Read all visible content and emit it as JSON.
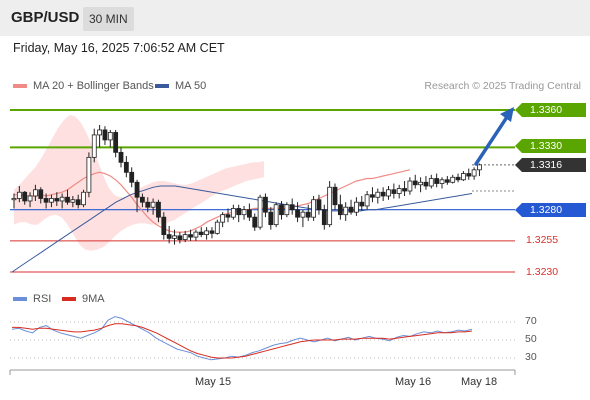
{
  "header": {
    "pair": "GBP/USD",
    "timeframe": "30 MIN"
  },
  "datetime": "Friday, May 16, 2025 7:06:52 AM CET",
  "legend": {
    "ma20_label": "MA 20 + Bollinger Bands",
    "ma50_label": "MA 50",
    "rsi_label": "RSI",
    "rsi_ma_label": "9MA",
    "research": "Research © 2025 Trading Central"
  },
  "levels": {
    "r2": "1.3360",
    "r1": "1.3330",
    "last": "1.3316",
    "pivot": "1.3280",
    "s1": "1.3255",
    "s2": "1.3230"
  },
  "rsi_ticks": [
    "70",
    "50",
    "30"
  ],
  "x_labels": [
    "May 15",
    "May 16",
    "May 18"
  ],
  "colors": {
    "up_candle": "#ffffff",
    "down_candle": "#222222",
    "resistance": "#5aa500",
    "pivot": "#2459d3",
    "support": "#d8322d",
    "ma20": "#f08a84",
    "ma50": "#3a5a9c",
    "bollinger_fill": "#fde0df",
    "rsi": "#6a8fd8",
    "rsi_ma": "#d82c20",
    "last_price": "#333333"
  },
  "chart_data": {
    "type": "candlestick",
    "y_range": [
      1.3225,
      1.3375
    ],
    "ohlc": [
      [
        1.3288,
        1.3293,
        1.3281,
        1.3289
      ],
      [
        1.3289,
        1.3299,
        1.3286,
        1.3294
      ],
      [
        1.3294,
        1.3295,
        1.3284,
        1.3287
      ],
      [
        1.3287,
        1.3294,
        1.3282,
        1.3291
      ],
      [
        1.3291,
        1.33,
        1.3287,
        1.3296
      ],
      [
        1.3296,
        1.3298,
        1.3285,
        1.3289
      ],
      [
        1.3289,
        1.3293,
        1.3281,
        1.3286
      ],
      [
        1.3286,
        1.3292,
        1.3282,
        1.3289
      ],
      [
        1.3289,
        1.3294,
        1.3283,
        1.3287
      ],
      [
        1.3287,
        1.3293,
        1.3281,
        1.329
      ],
      [
        1.329,
        1.3296,
        1.3284,
        1.3286
      ],
      [
        1.3286,
        1.3291,
        1.3282,
        1.3288
      ],
      [
        1.3288,
        1.3292,
        1.3281,
        1.3284
      ],
      [
        1.3284,
        1.3296,
        1.3282,
        1.3294
      ],
      [
        1.3294,
        1.3326,
        1.329,
        1.3322
      ],
      [
        1.3322,
        1.3345,
        1.3318,
        1.334
      ],
      [
        1.334,
        1.3348,
        1.333,
        1.3344
      ],
      [
        1.3344,
        1.3347,
        1.3332,
        1.3336
      ],
      [
        1.3336,
        1.3344,
        1.333,
        1.3342
      ],
      [
        1.3342,
        1.3344,
        1.3322,
        1.3326
      ],
      [
        1.3326,
        1.333,
        1.3314,
        1.3318
      ],
      [
        1.3318,
        1.3323,
        1.3306,
        1.331
      ],
      [
        1.331,
        1.3314,
        1.3298,
        1.3302
      ],
      [
        1.3302,
        1.3304,
        1.3278,
        1.329
      ],
      [
        1.329,
        1.3293,
        1.3282,
        1.3286
      ],
      [
        1.3286,
        1.329,
        1.3278,
        1.3282
      ],
      [
        1.3282,
        1.3289,
        1.3276,
        1.3286
      ],
      [
        1.3286,
        1.3288,
        1.327,
        1.3274
      ],
      [
        1.3274,
        1.3278,
        1.3256,
        1.326
      ],
      [
        1.326,
        1.3267,
        1.3253,
        1.3257
      ],
      [
        1.3257,
        1.3264,
        1.3252,
        1.3259
      ],
      [
        1.3259,
        1.3262,
        1.3253,
        1.3256
      ],
      [
        1.3256,
        1.3263,
        1.3254,
        1.326
      ],
      [
        1.326,
        1.3264,
        1.3255,
        1.3258
      ],
      [
        1.3258,
        1.3264,
        1.3255,
        1.3262
      ],
      [
        1.3262,
        1.3266,
        1.3258,
        1.326
      ],
      [
        1.326,
        1.3266,
        1.3256,
        1.3263
      ],
      [
        1.3263,
        1.3266,
        1.3257,
        1.3261
      ],
      [
        1.3261,
        1.3272,
        1.326,
        1.327
      ],
      [
        1.327,
        1.3278,
        1.3266,
        1.3276
      ],
      [
        1.3276,
        1.3281,
        1.327,
        1.3274
      ],
      [
        1.3274,
        1.3284,
        1.3272,
        1.3281
      ],
      [
        1.3281,
        1.3284,
        1.327,
        1.3276
      ],
      [
        1.3276,
        1.3283,
        1.3272,
        1.328
      ],
      [
        1.328,
        1.3285,
        1.3271,
        1.3274
      ],
      [
        1.3274,
        1.3277,
        1.3263,
        1.3266
      ],
      [
        1.3266,
        1.3292,
        1.3264,
        1.329
      ],
      [
        1.329,
        1.3293,
        1.3274,
        1.3278
      ],
      [
        1.3278,
        1.3282,
        1.3264,
        1.3268
      ],
      [
        1.3268,
        1.3286,
        1.3266,
        1.3284
      ],
      [
        1.3284,
        1.3287,
        1.3272,
        1.3276
      ],
      [
        1.3276,
        1.3286,
        1.3274,
        1.3284
      ],
      [
        1.3284,
        1.3289,
        1.3276,
        1.328
      ],
      [
        1.328,
        1.3286,
        1.327,
        1.3274
      ],
      [
        1.3274,
        1.328,
        1.3266,
        1.3278
      ],
      [
        1.3278,
        1.3284,
        1.3271,
        1.3274
      ],
      [
        1.3274,
        1.3291,
        1.3271,
        1.3288
      ],
      [
        1.3288,
        1.3292,
        1.3276,
        1.328
      ],
      [
        1.328,
        1.3284,
        1.3264,
        1.3268
      ],
      [
        1.3268,
        1.3303,
        1.3266,
        1.3298
      ],
      [
        1.3298,
        1.3301,
        1.328,
        1.3284
      ],
      [
        1.3284,
        1.3292,
        1.3272,
        1.3276
      ],
      [
        1.3276,
        1.3286,
        1.3271,
        1.3282
      ],
      [
        1.3282,
        1.3288,
        1.3276,
        1.3278
      ],
      [
        1.3278,
        1.329,
        1.3275,
        1.3286
      ],
      [
        1.3286,
        1.3291,
        1.3279,
        1.3283
      ],
      [
        1.3283,
        1.3295,
        1.328,
        1.3292
      ],
      [
        1.3292,
        1.3298,
        1.3286,
        1.329
      ],
      [
        1.329,
        1.3297,
        1.3285,
        1.3294
      ],
      [
        1.3294,
        1.3298,
        1.3287,
        1.3291
      ],
      [
        1.3291,
        1.3299,
        1.3288,
        1.3296
      ],
      [
        1.3296,
        1.3301,
        1.3289,
        1.3293
      ],
      [
        1.3293,
        1.33,
        1.3289,
        1.3297
      ],
      [
        1.3297,
        1.3303,
        1.3291,
        1.3295
      ],
      [
        1.3295,
        1.3306,
        1.3292,
        1.3303
      ],
      [
        1.3303,
        1.3308,
        1.3297,
        1.33
      ],
      [
        1.33,
        1.3306,
        1.3294,
        1.3302
      ],
      [
        1.3302,
        1.3307,
        1.3296,
        1.3299
      ],
      [
        1.3299,
        1.3308,
        1.3297,
        1.3305
      ],
      [
        1.3305,
        1.3309,
        1.3298,
        1.3301
      ],
      [
        1.3301,
        1.3306,
        1.3297,
        1.3304
      ],
      [
        1.3304,
        1.3307,
        1.33,
        1.3302
      ],
      [
        1.3302,
        1.3308,
        1.3301,
        1.3306
      ],
      [
        1.3306,
        1.3309,
        1.3302,
        1.3304
      ],
      [
        1.3304,
        1.3311,
        1.3303,
        1.3309
      ],
      [
        1.3309,
        1.3313,
        1.3304,
        1.3307
      ],
      [
        1.3307,
        1.3314,
        1.3304,
        1.3312
      ],
      [
        1.3312,
        1.3317,
        1.3307,
        1.3316
      ]
    ],
    "ma20": [
      1.3292,
      1.3292,
      1.3291,
      1.3291,
      1.3291,
      1.3292,
      1.3291,
      1.3292,
      1.3293,
      1.3294,
      1.3296,
      1.3299,
      1.3302,
      1.3305,
      1.3307,
      1.3309,
      1.331,
      1.3309,
      1.3307,
      1.3304,
      1.33,
      1.3295,
      1.329,
      1.3284,
      1.3279,
      1.3274,
      1.327,
      1.3267,
      1.3265,
      1.3263,
      1.3262,
      1.3262,
      1.3262,
      1.3263,
      1.3265,
      1.3267,
      1.327,
      1.3272,
      1.3274,
      1.3276,
      1.3277,
      1.3278,
      1.3279,
      1.328,
      1.328,
      1.3281,
      1.3281,
      1.3281,
      1.3281,
      1.3281,
      1.3281,
      1.3281,
      1.3282,
      1.3283,
      1.3284,
      1.3285,
      1.3287,
      1.3289,
      1.3291,
      1.3293,
      1.3295,
      1.3297,
      1.3299,
      1.3301,
      1.3303,
      1.3304,
      1.3305,
      1.3305,
      1.3306,
      1.3307,
      1.3308,
      1.3309,
      1.331,
      1.3311,
      1.3312
    ],
    "ma50": [
      1.323,
      1.3234,
      1.3238,
      1.3242,
      1.3246,
      1.325,
      1.3254,
      1.3258,
      1.3262,
      1.3266,
      1.327,
      1.3274,
      1.3278,
      1.3282,
      1.3286,
      1.3289,
      1.3292,
      1.3294,
      1.3296,
      1.3298,
      1.3299,
      1.3299,
      1.3299,
      1.3298,
      1.3297,
      1.3296,
      1.3295,
      1.3294,
      1.3293,
      1.3292,
      1.3291,
      1.329,
      1.3289,
      1.3288,
      1.3287,
      1.3286,
      1.3285,
      1.3284,
      1.3283,
      1.3282,
      1.3281,
      1.328,
      1.328,
      1.3279,
      1.3279,
      1.3279,
      1.3279,
      1.3279,
      1.328,
      1.328,
      1.3281,
      1.3282,
      1.3283,
      1.3284,
      1.3285,
      1.3286,
      1.3287,
      1.3288,
      1.3289,
      1.329,
      1.3291,
      1.3292,
      1.3293
    ],
    "bb_upper": [
      1.3296,
      1.33,
      1.3305,
      1.331,
      1.3315,
      1.3322,
      1.333,
      1.3338,
      1.3346,
      1.3352,
      1.3356,
      1.3355,
      1.335,
      1.3342,
      1.3332,
      1.332,
      1.3308,
      1.3298,
      1.3292,
      1.329,
      1.329,
      1.3292,
      1.3295,
      1.3298,
      1.33,
      1.3302,
      1.3303,
      1.3303,
      1.3302,
      1.3301,
      1.33,
      1.33,
      1.3301,
      1.3303,
      1.3305,
      1.3307,
      1.3309,
      1.3311,
      1.3313,
      1.3314,
      1.3315,
      1.3316,
      1.3317,
      1.3318,
      1.3318,
      1.3319
    ],
    "bb_lower": [
      1.3268,
      1.327,
      1.327,
      1.3268,
      1.3268,
      1.3272,
      1.3275,
      1.3276,
      1.3274,
      1.3268,
      1.326,
      1.3252,
      1.3248,
      1.3247,
      1.3248,
      1.325,
      1.3254,
      1.3259,
      1.3263,
      1.3266,
      1.3268,
      1.3269,
      1.3269,
      1.3268,
      1.3268,
      1.3269,
      1.327,
      1.3272,
      1.3275,
      1.3278,
      1.3281,
      1.3284,
      1.3287,
      1.329,
      1.3293,
      1.3295,
      1.3297,
      1.3299,
      1.3301,
      1.3303,
      1.3304,
      1.3305,
      1.3306
    ],
    "rsi": [
      62,
      63,
      60,
      58,
      64,
      66,
      61,
      58,
      56,
      54,
      52,
      55,
      58,
      62,
      72,
      76,
      74,
      70,
      66,
      62,
      58,
      52,
      48,
      44,
      40,
      38,
      36,
      32,
      30,
      28,
      29,
      30,
      32,
      31,
      33,
      36,
      38,
      41,
      44,
      46,
      47,
      50,
      52,
      50,
      48,
      50,
      52,
      49,
      51,
      53,
      50,
      52,
      54,
      52,
      51,
      49,
      53,
      55,
      54,
      57,
      59,
      58,
      60,
      58,
      59,
      61,
      60,
      62
    ],
    "rsi_ma": [
      64,
      64,
      63,
      62,
      63,
      63,
      62,
      61,
      60,
      59,
      59,
      60,
      61,
      63,
      66,
      68,
      68,
      67,
      66,
      64,
      61,
      58,
      54,
      50,
      46,
      42,
      38,
      35,
      33,
      31,
      30,
      30,
      30,
      31,
      32,
      34,
      36,
      38,
      40,
      42,
      44,
      46,
      48,
      49,
      50,
      50,
      50,
      50,
      51,
      51,
      51,
      52,
      52,
      52,
      52,
      51,
      52,
      53,
      54,
      55,
      56,
      57,
      58,
      58,
      58,
      59,
      59,
      60
    ],
    "rsi_ticks": [
      70,
      50,
      30
    ],
    "x_labels": [
      "May 15",
      "May 16",
      "May 18"
    ]
  }
}
